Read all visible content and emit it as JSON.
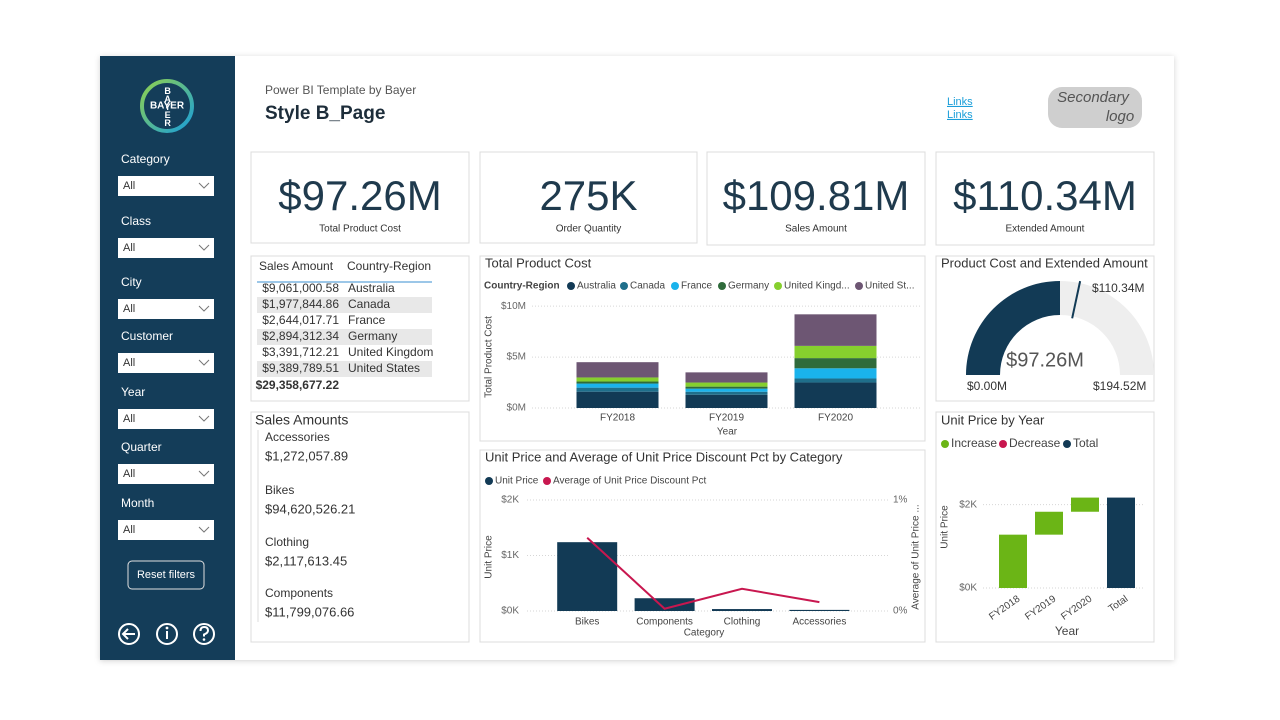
{
  "sidebar": {
    "logo": "BAYER",
    "filters": [
      {
        "label": "Category",
        "value": "All"
      },
      {
        "label": "Class",
        "value": "All"
      },
      {
        "label": "City",
        "value": "All"
      },
      {
        "label": "Customer",
        "value": "All"
      },
      {
        "label": "Year",
        "value": "All"
      },
      {
        "label": "Quarter",
        "value": "All"
      },
      {
        "label": "Month",
        "value": "All"
      }
    ],
    "reset_button": "Reset filters"
  },
  "header": {
    "subtitle": "Power BI Template by Bayer",
    "title": "Style B_Page",
    "links": [
      "Links",
      "Links"
    ],
    "secondary_logo": [
      "Secondary",
      "logo"
    ]
  },
  "kpis": [
    {
      "value": "$97.26M",
      "label": "Total Product Cost"
    },
    {
      "value": "275K",
      "label": "Order Quantity"
    },
    {
      "value": "$109.81M",
      "label": "Sales Amount"
    },
    {
      "value": "$110.34M",
      "label": "Extended Amount"
    }
  ],
  "sales_table": {
    "columns": [
      "Sales Amount",
      "Country-Region"
    ],
    "rows": [
      [
        "$9,061,000.58",
        "Australia"
      ],
      [
        "$1,977,844.86",
        "Canada"
      ],
      [
        "$2,644,017.71",
        "France"
      ],
      [
        "$2,894,312.34",
        "Germany"
      ],
      [
        "$3,391,712.21",
        "United Kingdom"
      ],
      [
        "$9,389,789.51",
        "United States"
      ]
    ],
    "total": "$29,358,677.22"
  },
  "sales_amounts": {
    "title": "Sales Amounts",
    "items": [
      {
        "name": "Accessories",
        "value": "$1,272,057.89"
      },
      {
        "name": "Bikes",
        "value": "$94,620,526.21"
      },
      {
        "name": "Clothing",
        "value": "$2,117,613.45"
      },
      {
        "name": "Components",
        "value": "$11,799,076.66"
      }
    ]
  },
  "chart_data": [
    {
      "type": "stacked_bar",
      "title": "Total Product Cost",
      "legend_title": "Country-Region",
      "categories": [
        "FY2018",
        "FY2019",
        "FY2020"
      ],
      "series": [
        {
          "name": "Australia",
          "color": "#123a55",
          "values": [
            1.6,
            1.3,
            2.5
          ]
        },
        {
          "name": "Canada",
          "color": "#1f6f8b",
          "values": [
            0.4,
            0.3,
            0.4
          ]
        },
        {
          "name": "France",
          "color": "#1ab3ec",
          "values": [
            0.4,
            0.3,
            1.0
          ]
        },
        {
          "name": "Germany",
          "color": "#2f6b3b",
          "values": [
            0.2,
            0.2,
            1.0
          ]
        },
        {
          "name": "United Kingd...",
          "color": "#86cf2e",
          "values": [
            0.4,
            0.4,
            1.2
          ]
        },
        {
          "name": "United St...",
          "color": "#6d5673",
          "values": [
            1.5,
            1.0,
            3.1
          ]
        }
      ],
      "ylim": [
        0,
        11
      ],
      "yticks": [
        {
          "value": 0,
          "label": "$0M"
        },
        {
          "value": 5,
          "label": "$5M"
        },
        {
          "value": 10,
          "label": "$10M"
        }
      ],
      "ylabel": "Total Product Cost",
      "xlabel": "Year",
      "grid": true
    },
    {
      "type": "gauge",
      "title": "Product Cost and Extended Amount",
      "value": 97.26,
      "value_label": "$97.26M",
      "min": 0,
      "min_label": "$0.00M",
      "max": 194.52,
      "max_label": "$194.52M",
      "target": 110.34,
      "target_label": "$110.34M",
      "color": "#123a55",
      "track_color": "#eeeeee"
    },
    {
      "type": "combo",
      "title": "Unit Price and Average of Unit Price Discount Pct by Category",
      "categories": [
        "Bikes",
        "Components",
        "Clothing",
        "Accessories"
      ],
      "series": [
        {
          "name": "Unit Price",
          "color": "#123a55",
          "kind": "bar",
          "values": [
            1240,
            230,
            35,
            20
          ]
        },
        {
          "name": "Average of Unit Price Discount Pct",
          "color": "#c8174f",
          "kind": "line",
          "axis": "y2",
          "values": [
            0.66,
            0.02,
            0.2,
            0.08
          ]
        }
      ],
      "ylim": [
        0,
        2000
      ],
      "yticks": [
        {
          "value": 0,
          "label": "$0K"
        },
        {
          "value": 1000,
          "label": "$1K"
        },
        {
          "value": 2000,
          "label": "$2K"
        }
      ],
      "y2lim": [
        0,
        1
      ],
      "y2ticks": [
        {
          "value": 0,
          "label": "0%"
        },
        {
          "value": 1,
          "label": "1%"
        }
      ],
      "ylabel": "Unit Price",
      "y2label": "Average of Unit Price ...",
      "xlabel": "Category",
      "grid": true
    },
    {
      "type": "waterfall",
      "title": "Unit Price by Year",
      "legend": [
        {
          "name": "Increase",
          "color": "#6bb516"
        },
        {
          "name": "Decrease",
          "color": "#c8174f"
        },
        {
          "name": "Total",
          "color": "#123a55"
        }
      ],
      "categories": [
        "FY2018",
        "FY2019",
        "FY2020",
        "Total"
      ],
      "values": [
        1280,
        550,
        340,
        2170
      ],
      "ylim": [
        0,
        2400
      ],
      "yticks": [
        {
          "value": 0,
          "label": "$0K"
        },
        {
          "value": 2000,
          "label": "$2K"
        }
      ],
      "ylabel": "Unit Price",
      "xlabel": "Year",
      "grid": true
    }
  ]
}
